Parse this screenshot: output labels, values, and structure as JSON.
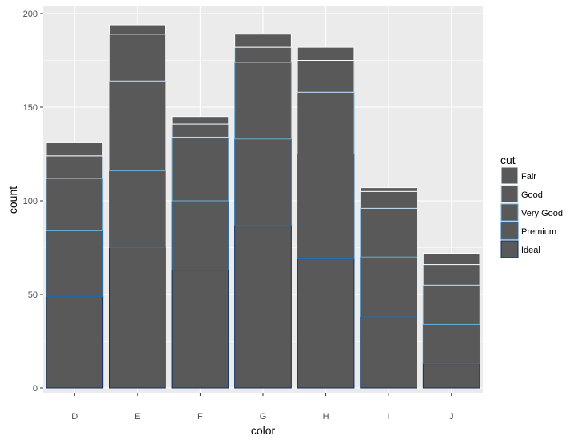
{
  "chart_data": {
    "type": "bar",
    "stacked": true,
    "categories": [
      "D",
      "E",
      "F",
      "G",
      "H",
      "I",
      "J"
    ],
    "series": [
      {
        "name": "Fair",
        "values": [
          7,
          5,
          4,
          7,
          7,
          2,
          6
        ]
      },
      {
        "name": "Good",
        "values": [
          12,
          25,
          7,
          8,
          17,
          9,
          11
        ]
      },
      {
        "name": "Very Good",
        "values": [
          28,
          48,
          34,
          41,
          33,
          26,
          21
        ]
      },
      {
        "name": "Premium",
        "values": [
          35,
          41,
          37,
          46,
          56,
          32,
          21
        ]
      },
      {
        "name": "Ideal",
        "values": [
          49,
          75,
          63,
          87,
          69,
          38,
          13
        ]
      }
    ],
    "xlabel": "color",
    "ylabel": "count",
    "ylim": [
      0,
      202
    ],
    "yticks": [
      0,
      50,
      100,
      150,
      200
    ],
    "grid": true,
    "legend": {
      "title": "cut",
      "placement": "right",
      "entries": [
        "Fair",
        "Good",
        "Very Good",
        "Premium",
        "Ideal"
      ]
    },
    "colors": {
      "panel_background": "#ebebeb",
      "grid_major": "#ffffff",
      "bar_fill": "#595959",
      "series_outlines": [
        "#f7fbff",
        "#c6dbef",
        "#6baed6",
        "#2171b5",
        "#08306b"
      ]
    }
  }
}
